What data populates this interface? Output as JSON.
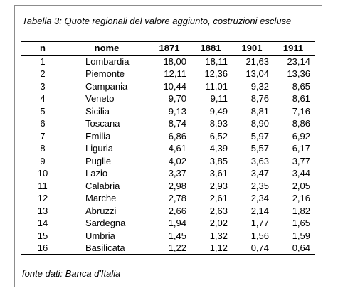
{
  "caption": "Tabella 3: Quote regionali del valore aggiunto, costruzioni escluse",
  "source": "fonte dati: Banca d'Italia",
  "table": {
    "headers": [
      "n",
      "nome",
      "1871",
      "1881",
      "1901",
      "1911"
    ],
    "rows": [
      [
        "1",
        "Lombardia",
        "18,00",
        "18,11",
        "21,63",
        "23,14"
      ],
      [
        "2",
        "Piemonte",
        "12,11",
        "12,36",
        "13,04",
        "13,36"
      ],
      [
        "3",
        "Campania",
        "10,44",
        "11,01",
        "9,32",
        "8,65"
      ],
      [
        "4",
        "Veneto",
        "9,70",
        "9,11",
        "8,76",
        "8,61"
      ],
      [
        "5",
        "Sicilia",
        "9,13",
        "9,49",
        "8,81",
        "7,16"
      ],
      [
        "6",
        "Toscana",
        "8,74",
        "8,93",
        "8,90",
        "8,86"
      ],
      [
        "7",
        "Emilia",
        "6,86",
        "6,52",
        "5,97",
        "6,92"
      ],
      [
        "8",
        "Liguria",
        "4,61",
        "4,39",
        "5,57",
        "6,17"
      ],
      [
        "9",
        "Puglie",
        "4,02",
        "3,85",
        "3,63",
        "3,77"
      ],
      [
        "10",
        "Lazio",
        "3,37",
        "3,61",
        "3,47",
        "3,44"
      ],
      [
        "11",
        "Calabria",
        "2,98",
        "2,93",
        "2,35",
        "2,05"
      ],
      [
        "12",
        "Marche",
        "2,78",
        "2,61",
        "2,34",
        "2,16"
      ],
      [
        "13",
        "Abruzzi",
        "2,66",
        "2,63",
        "2,14",
        "1,82"
      ],
      [
        "14",
        "Sardegna",
        "1,94",
        "2,02",
        "1,77",
        "1,65"
      ],
      [
        "15",
        "Umbria",
        "1,45",
        "1,32",
        "1,56",
        "1,59"
      ],
      [
        "16",
        "Basilicata",
        "1,22",
        "1,12",
        "0,74",
        "0,64"
      ]
    ]
  }
}
